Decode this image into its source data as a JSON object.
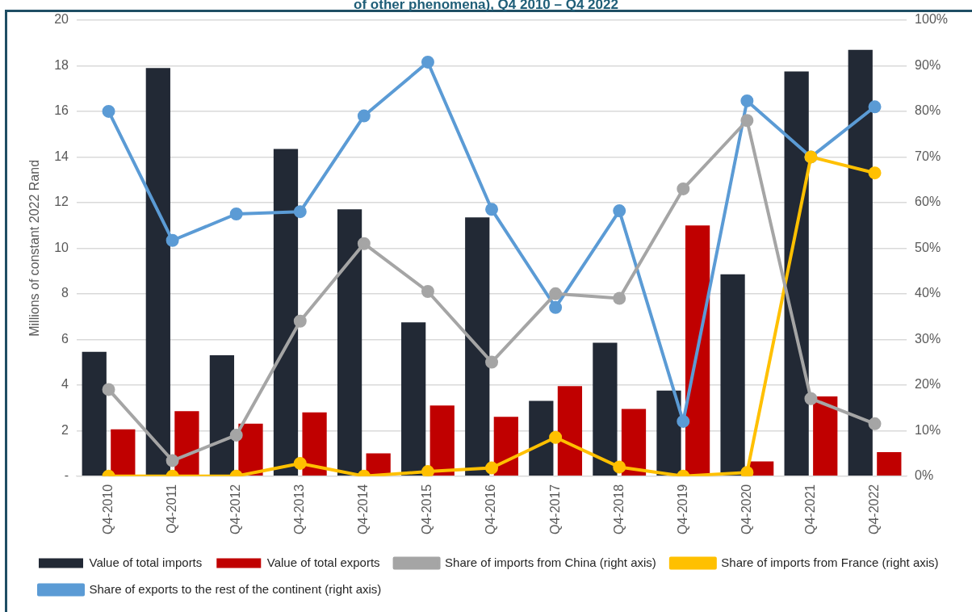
{
  "chart_data": {
    "type": "bar",
    "title": "of other phenomena), Q4 2010 – Q4 2022",
    "ylabel": "Millions of constant 2022 Rand",
    "categories": [
      "Q4-2010",
      "Q4-2011",
      "Q4-2012",
      "Q4-2013",
      "Q4-2014",
      "Q4-2015",
      "Q4-2016",
      "Q4-2017",
      "Q4-2018",
      "Q4-2019",
      "Q4-2020",
      "Q4-2021",
      "Q4-2022"
    ],
    "series": [
      {
        "name": "Value of total imports",
        "color": "#222935",
        "values": [
          5.45,
          17.9,
          5.3,
          14.35,
          11.7,
          6.75,
          11.35,
          3.3,
          5.85,
          3.75,
          8.85,
          17.75,
          18.7
        ]
      },
      {
        "name": "Value of total exports",
        "color": "#c00000",
        "values": [
          2.05,
          2.85,
          2.3,
          2.8,
          1.0,
          3.1,
          2.6,
          3.95,
          2.95,
          11.0,
          0.65,
          3.5,
          1.05
        ]
      },
      {
        "name": "Share of imports from China (right axis)",
        "type": "line",
        "axis": "y2",
        "color": "#a5a5a5",
        "values": [
          19,
          3.4,
          9,
          34,
          51,
          40.5,
          25,
          40,
          39,
          63,
          78,
          17,
          11.5
        ]
      },
      {
        "name": "Share of imports from France (right axis)",
        "type": "line",
        "axis": "y2",
        "color": "#ffc000",
        "values": [
          0,
          0,
          0,
          2.8,
          0,
          1,
          1.8,
          8.5,
          2,
          0,
          0.8,
          70,
          66.5
        ]
      },
      {
        "name": "Share of exports to the rest of the continent (right axis)",
        "type": "line",
        "axis": "y2",
        "color": "#5b9bd5",
        "values": [
          80,
          51.7,
          57.5,
          58,
          79,
          90.8,
          58.5,
          37,
          58.2,
          12,
          82.3,
          70,
          81
        ]
      }
    ],
    "ylim": [
      0,
      20
    ],
    "yticks": [
      {
        "value": 0,
        "label": "-"
      },
      2,
      4,
      6,
      8,
      10,
      12,
      14,
      16,
      18,
      20
    ],
    "y2lim": [
      0,
      100
    ],
    "y2ticks": [
      {
        "value": 0,
        "label": "0%"
      },
      {
        "value": 10,
        "label": "10%"
      },
      {
        "value": 20,
        "label": "20%"
      },
      {
        "value": 30,
        "label": "30%"
      },
      {
        "value": 40,
        "label": "40%"
      },
      {
        "value": 50,
        "label": "50%"
      },
      {
        "value": 60,
        "label": "60%"
      },
      {
        "value": 70,
        "label": "70%"
      },
      {
        "value": 80,
        "label": "80%"
      },
      {
        "value": 90,
        "label": "90%"
      },
      {
        "value": 100,
        "label": "100%"
      }
    ],
    "grid": "y",
    "legend": "bottom",
    "marker": "circle",
    "line_style": "solid"
  }
}
